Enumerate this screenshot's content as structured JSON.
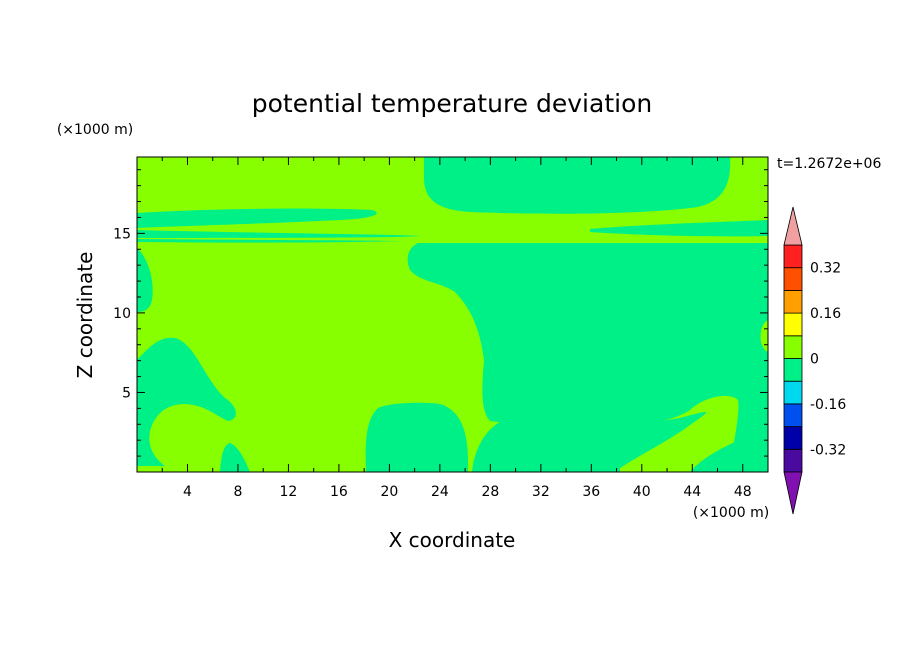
{
  "chart_data": {
    "type": "heatmap",
    "title": "potential temperature deviation",
    "xlabel": "X coordinate",
    "ylabel": "Z coordinate",
    "x_unit": "(×1000 m)",
    "y_unit": "(×1000 m)",
    "time_label": "t=1.2672e+06",
    "xlim": [
      0,
      50
    ],
    "ylim": [
      0,
      19.8
    ],
    "x_ticks": [
      4,
      8,
      12,
      16,
      20,
      24,
      28,
      32,
      36,
      40,
      44,
      48
    ],
    "y_ticks": [
      5,
      10,
      15
    ],
    "colorbar": {
      "levels": [
        -0.4,
        -0.32,
        -0.24,
        -0.16,
        -0.08,
        0,
        0.08,
        0.16,
        0.24,
        0.32,
        0.4
      ],
      "labels": [
        "-0.32",
        "-0.16",
        "0",
        "0.16",
        "0.32"
      ],
      "label_values": [
        -0.32,
        -0.16,
        0,
        0.16,
        0.32
      ],
      "colors": [
        "#4a0aa0",
        "#0000a8",
        "#0050f0",
        "#00d8f0",
        "#00f088",
        "#88ff00",
        "#ffff00",
        "#ffa000",
        "#ff5000",
        "#ff2020"
      ],
      "under_color": "#8010b0",
      "over_color": "#f0a0a0"
    },
    "regions": [
      {
        "value_class": "0 to 0.08",
        "color": "#88ff00",
        "description": "background"
      },
      {
        "value_class": "-0.08 to 0",
        "color": "#00f088",
        "description": "negative deviation areas"
      }
    ]
  }
}
